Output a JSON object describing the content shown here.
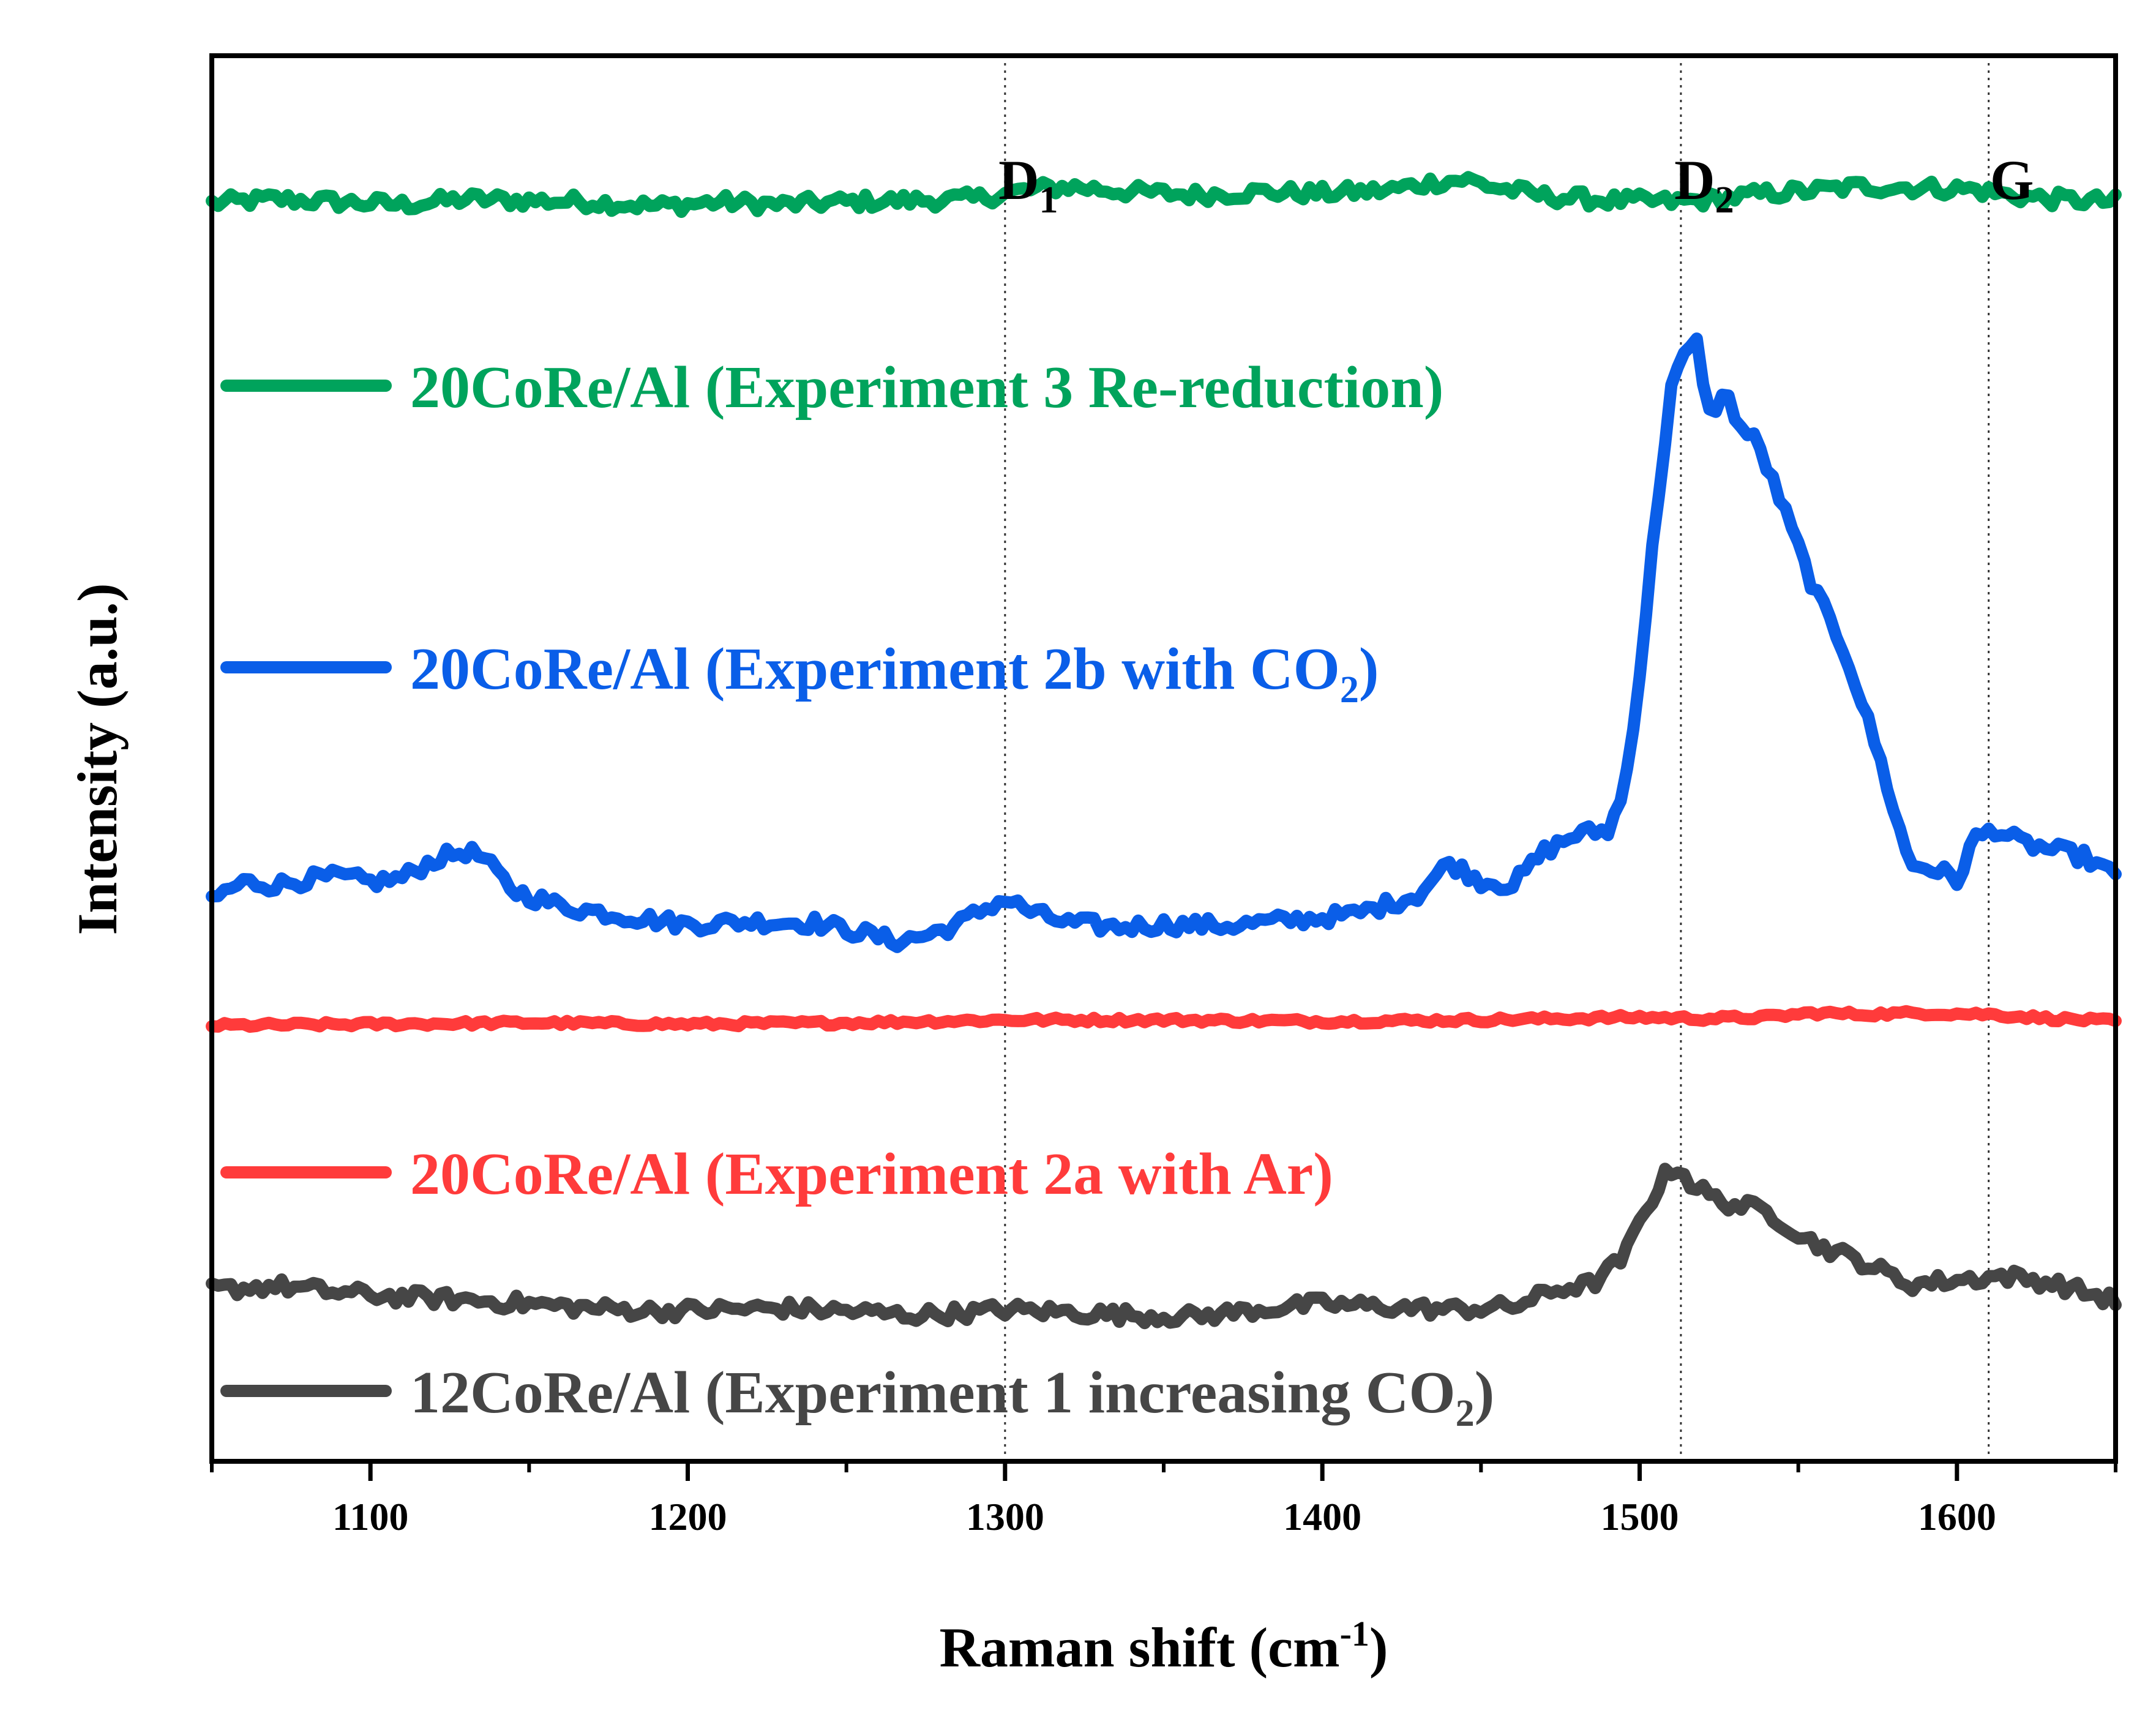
{
  "chart_data": {
    "type": "line",
    "title": "",
    "xlabel": "Raman shift (cm",
    "xlabel_sup": "-1",
    "xlabel_end": ")",
    "ylabel": "Intensity (a.u.)",
    "xlim": [
      1050,
      1650
    ],
    "ylim": [
      0,
      100
    ],
    "y_ticks": "none",
    "grid": false,
    "x_ticks": [
      1100,
      1200,
      1300,
      1400,
      1500,
      1600
    ],
    "x_tick_labels": [
      "1100",
      "1200",
      "1300",
      "1400",
      "1500",
      "1600"
    ],
    "reference_lines": [
      {
        "x": 1300,
        "label": "D",
        "sub": "1"
      },
      {
        "x": 1513,
        "label": "D",
        "sub": "2"
      },
      {
        "x": 1610,
        "label": "G",
        "sub": ""
      }
    ],
    "series": [
      {
        "name": "20CoRe/Al (Experiment 3 Re-reduction)",
        "legend_main": "20CoRe/Al (Experiment 3 Re-reduction)",
        "legend_sub": "",
        "legend_end": "",
        "color": "#00a35c",
        "x": [
          1050,
          1070,
          1090,
          1110,
          1130,
          1150,
          1170,
          1190,
          1210,
          1230,
          1250,
          1270,
          1290,
          1300,
          1310,
          1320,
          1340,
          1360,
          1380,
          1400,
          1420,
          1435,
          1445,
          1455,
          1470,
          1490,
          1510,
          1525,
          1540,
          1555,
          1570,
          1590,
          1605,
          1615,
          1630,
          1650
        ],
        "y": [
          89.5,
          89.8,
          89.6,
          89.4,
          89.8,
          89.7,
          89.6,
          89.3,
          89.6,
          89.4,
          89.6,
          89.7,
          89.8,
          90.2,
          90.5,
          90.7,
          90.3,
          90.1,
          90.3,
          90.2,
          90.4,
          91.0,
          91.2,
          90.6,
          90.0,
          89.7,
          89.6,
          89.8,
          90.2,
          90.4,
          90.7,
          90.6,
          90.5,
          90.1,
          89.8,
          89.6
        ]
      },
      {
        "name": "20CoRe/Al (Experiment 2b with CO2)",
        "legend_main": "20CoRe/Al (Experiment 2b with CO",
        "legend_sub": "2",
        "legend_end": ")",
        "color": "#0a5ee8",
        "x": [
          1050,
          1060,
          1070,
          1080,
          1090,
          1100,
          1110,
          1120,
          1130,
          1135,
          1145,
          1160,
          1180,
          1200,
          1220,
          1240,
          1255,
          1265,
          1275,
          1285,
          1295,
          1300,
          1310,
          1320,
          1335,
          1350,
          1370,
          1390,
          1410,
          1420,
          1430,
          1440,
          1450,
          1460,
          1470,
          1480,
          1490,
          1495,
          1500,
          1505,
          1510,
          1515,
          1518,
          1522,
          1527,
          1532,
          1537,
          1545,
          1555,
          1565,
          1575,
          1585,
          1595,
          1600,
          1605,
          1612,
          1620,
          1630,
          1640,
          1650
        ],
        "y": [
          40.0,
          41.2,
          41.0,
          41.4,
          41.6,
          41.2,
          41.5,
          42.8,
          43.4,
          43.0,
          40.6,
          39.5,
          38.8,
          38.2,
          38.4,
          38.3,
          37.6,
          37.0,
          37.4,
          38.2,
          39.5,
          40.0,
          38.9,
          38.3,
          38.0,
          38.2,
          38.1,
          38.5,
          38.9,
          39.6,
          40.3,
          42.6,
          41.3,
          41.0,
          43.4,
          44.6,
          44.9,
          47.5,
          56.0,
          67.0,
          76.5,
          79.0,
          79.5,
          74.5,
          76.0,
          73.5,
          72.5,
          68.0,
          62.0,
          57.5,
          50.5,
          42.5,
          42.0,
          41.2,
          44.2,
          45.0,
          44.0,
          43.5,
          43.0,
          41.6
        ]
      },
      {
        "name": "20CoRe/Al (Experiment 2a with Ar)",
        "legend_main": "20CoRe/Al (Experiment 2a with Ar)",
        "legend_sub": "",
        "legend_end": "",
        "color": "#ff3b3b",
        "x": [
          1050,
          1100,
          1150,
          1200,
          1250,
          1300,
          1350,
          1400,
          1450,
          1500,
          1520,
          1540,
          1555,
          1570,
          1590,
          1610,
          1630,
          1650
        ],
        "y": [
          31.0,
          31.1,
          31.2,
          31.1,
          31.2,
          31.4,
          31.4,
          31.3,
          31.4,
          31.6,
          31.5,
          31.6,
          31.9,
          31.8,
          31.9,
          31.8,
          31.5,
          31.3
        ]
      },
      {
        "name": "12CoRe/Al (Experiment 1 increasing CO2)",
        "legend_main": "12CoRe/Al (Experiment 1 increasing CO",
        "legend_sub": "2",
        "legend_end": ")",
        "color": "#464646",
        "x": [
          1050,
          1070,
          1090,
          1110,
          1130,
          1150,
          1170,
          1190,
          1210,
          1230,
          1250,
          1270,
          1290,
          1300,
          1320,
          1340,
          1360,
          1380,
          1400,
          1420,
          1440,
          1460,
          1475,
          1485,
          1495,
          1502,
          1508,
          1512,
          1516,
          1525,
          1540,
          1555,
          1570,
          1585,
          1600,
          1615,
          1630,
          1650
        ],
        "y": [
          12.2,
          12.5,
          12.0,
          11.7,
          11.5,
          11.2,
          10.9,
          10.7,
          10.8,
          10.9,
          10.7,
          10.4,
          10.6,
          10.8,
          10.6,
          10.4,
          10.3,
          10.8,
          11.2,
          11.0,
          10.8,
          11.0,
          12.3,
          12.6,
          14.5,
          18.0,
          20.3,
          21.0,
          19.8,
          18.5,
          17.8,
          15.5,
          14.2,
          12.6,
          12.9,
          13.2,
          12.7,
          11.4
        ]
      }
    ]
  }
}
